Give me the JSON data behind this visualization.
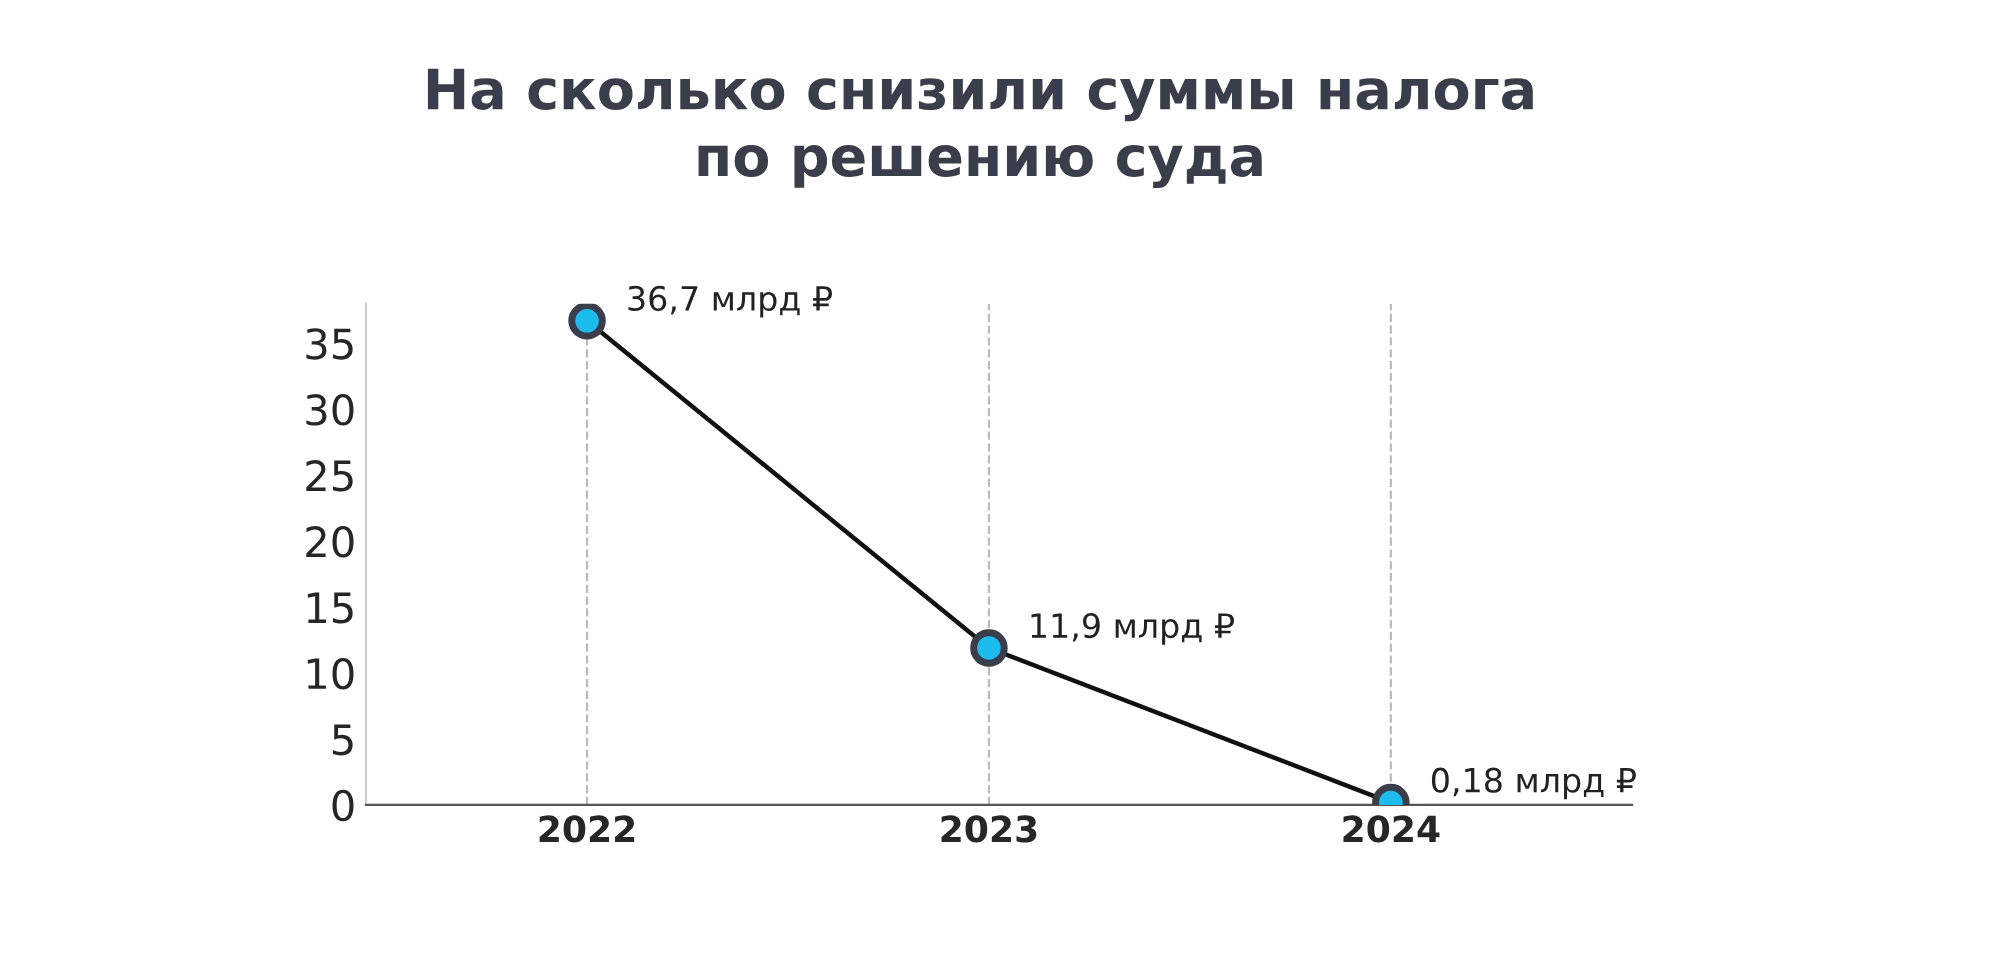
{
  "chart_data": {
    "type": "line",
    "title": "На сколько снизили суммы налога\nпо решению суда",
    "categories": [
      "2022",
      "2023",
      "2024"
    ],
    "series": [
      {
        "color": "#1ebbee",
        "values": [
          36.7,
          11.9,
          0.18
        ],
        "value_labels": [
          "36,7 млрд ₽",
          "11,9 млрд ₽",
          "0,18 млрд ₽"
        ]
      }
    ],
    "ylim": [
      0,
      38
    ],
    "yticks": [
      0,
      5,
      10,
      15,
      20,
      25,
      30,
      35
    ],
    "grid": "x",
    "marker": "circle",
    "line_style": "solid",
    "legend": false
  }
}
